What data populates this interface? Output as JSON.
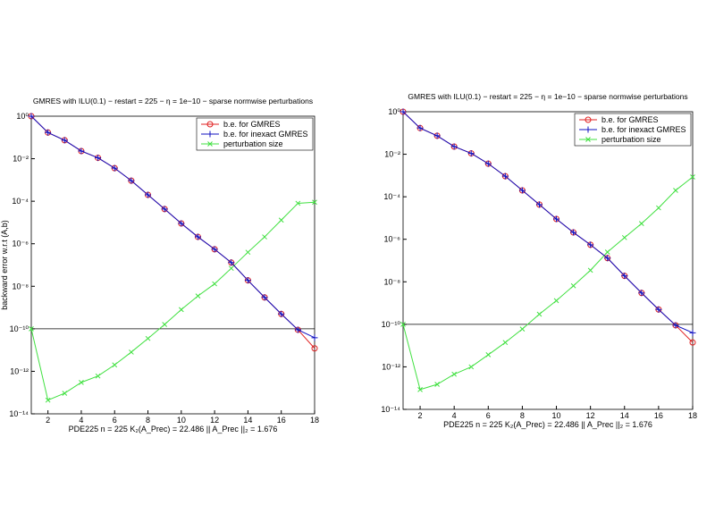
{
  "chart_data": [
    {
      "type": "line",
      "title": "GMRES with ILU(0.1)  − restart = 225 − η = 1e−10 − sparse normwise perturbations",
      "ylabel": "backward error w.r.t (A,b)",
      "xlabel": "PDE225     n = 225     K₂(A_Prec) = 22.486     || A_Prec ||₂ = 1.676",
      "log_y": true,
      "legend": "upper right",
      "hline": 1e-10,
      "x": [
        1,
        2,
        3,
        4,
        5,
        6,
        7,
        8,
        9,
        10,
        11,
        12,
        13,
        14,
        15,
        16,
        17,
        18
      ],
      "xlim": [
        1,
        18
      ],
      "xticks": [
        2,
        4,
        6,
        8,
        10,
        12,
        14,
        16,
        18
      ],
      "ylim": [
        1e-14,
        1
      ],
      "yticks": [
        {
          "value": 1,
          "label": "10⁰"
        },
        {
          "value": 0.01,
          "label": "10⁻²"
        },
        {
          "value": 0.0001,
          "label": "10⁻⁴"
        },
        {
          "value": 1e-06,
          "label": "10⁻⁶"
        },
        {
          "value": 1e-08,
          "label": "10⁻⁸"
        },
        {
          "value": 1e-10,
          "label": "10⁻¹⁰"
        },
        {
          "value": 1e-12,
          "label": "10⁻¹²"
        },
        {
          "value": 1e-14,
          "label": "10⁻¹⁴"
        }
      ],
      "series": [
        {
          "name": "b.e. for GMRES",
          "color": "#e02020",
          "marker": "circle",
          "values": [
            1,
            0.17,
            0.074,
            0.023,
            0.011,
            0.0036,
            0.00093,
            0.0002,
            4.3e-05,
            9e-06,
            2.1e-06,
            5.5e-07,
            1.3e-07,
            1.9e-08,
            3e-09,
            5e-10,
            9e-11,
            1.2e-11
          ]
        },
        {
          "name": "b.e. for inexact GMRES",
          "color": "#1010c0",
          "marker": "plus",
          "values": [
            1,
            0.17,
            0.074,
            0.023,
            0.011,
            0.0036,
            0.00093,
            0.0002,
            4.3e-05,
            9e-06,
            2.1e-06,
            5.5e-07,
            1.3e-07,
            1.9e-08,
            3e-09,
            5e-10,
            9e-11,
            3.8e-11
          ]
        },
        {
          "name": "perturbation size",
          "color": "#40e040",
          "marker": "x",
          "values": [
            1e-10,
            4.4e-14,
            9.3e-14,
            3e-13,
            6e-13,
            2e-12,
            8e-12,
            3.5e-11,
            1.6e-10,
            8e-10,
            3.5e-09,
            1.3e-08,
            7e-08,
            4e-07,
            2.1e-06,
            1.3e-05,
            8e-05,
            9e-05
          ]
        }
      ]
    },
    {
      "type": "line",
      "title": "GMRES with ILU(0.1)  − restart = 225 − η = 1e−10 − sparse normwise perturbations",
      "xlabel": "PDE225     n = 225     K₂(A_Prec) = 22.486     || A_Prec ||₂ = 1.676",
      "log_y": true,
      "legend": "upper right",
      "hline": 1e-10,
      "x": [
        1,
        2,
        3,
        4,
        5,
        6,
        7,
        8,
        9,
        10,
        11,
        12,
        13,
        14,
        15,
        16,
        17,
        18
      ],
      "xlim": [
        1,
        18
      ],
      "xticks": [
        2,
        4,
        6,
        8,
        10,
        12,
        14,
        16,
        18
      ],
      "ylim": [
        1e-14,
        1
      ],
      "yticks": [
        {
          "value": 1,
          "label": "10⁰"
        },
        {
          "value": 0.01,
          "label": "10⁻²"
        },
        {
          "value": 0.0001,
          "label": "10⁻⁴"
        },
        {
          "value": 1e-06,
          "label": "10⁻⁶"
        },
        {
          "value": 1e-08,
          "label": "10⁻⁸"
        },
        {
          "value": 1e-10,
          "label": "10⁻¹⁰"
        },
        {
          "value": 1e-12,
          "label": "10⁻¹²"
        },
        {
          "value": 1e-14,
          "label": "10⁻¹⁴"
        }
      ],
      "series": [
        {
          "name": "b.e. for GMRES",
          "color": "#e02020",
          "marker": "circle",
          "values": [
            1,
            0.17,
            0.074,
            0.023,
            0.011,
            0.0036,
            0.00093,
            0.0002,
            4.3e-05,
            9e-06,
            2.1e-06,
            5.5e-07,
            1.3e-07,
            1.9e-08,
            3e-09,
            5e-10,
            9e-11,
            1.4e-11
          ]
        },
        {
          "name": "b.e. for inexact GMRES",
          "color": "#1010c0",
          "marker": "plus",
          "values": [
            1,
            0.17,
            0.074,
            0.023,
            0.011,
            0.0036,
            0.00093,
            0.0002,
            4.3e-05,
            9e-06,
            2.1e-06,
            5.5e-07,
            1.3e-07,
            1.9e-08,
            3e-09,
            5e-10,
            9e-11,
            4e-11
          ]
        },
        {
          "name": "perturbation size",
          "color": "#40e040",
          "marker": "x",
          "values": [
            1e-10,
            8.5e-14,
            1.5e-13,
            4.5e-13,
            1e-12,
            3.7e-12,
            1.4e-11,
            6e-11,
            3e-10,
            1.3e-09,
            6.5e-09,
            3.5e-08,
            2.5e-07,
            1.2e-06,
            5.5e-06,
            3e-05,
            0.0002,
            0.00085
          ]
        }
      ]
    }
  ]
}
